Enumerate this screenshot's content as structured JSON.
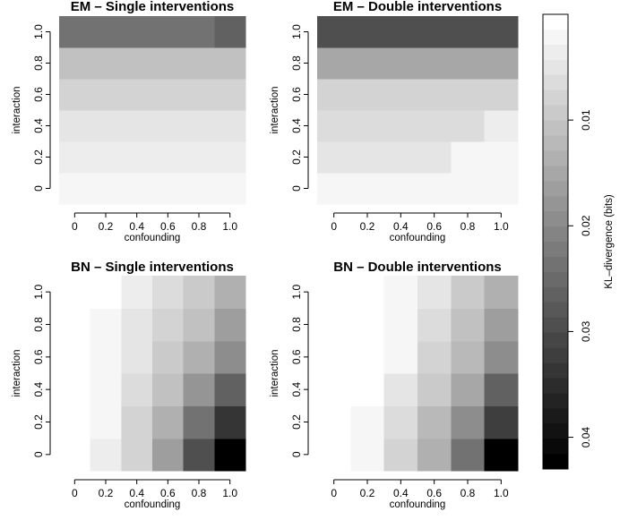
{
  "chart_data": [
    {
      "type": "heatmap",
      "title": "EM – Single interventions",
      "xlabel": "confounding",
      "ylabel": "interaction",
      "x": [
        0,
        0.2,
        0.4,
        0.6,
        0.8,
        1.0
      ],
      "y": [
        0,
        0.2,
        0.4,
        0.6,
        0.8,
        1.0
      ],
      "x_tick_labels": [
        "0",
        "0.2",
        "0.4",
        "0.6",
        "0.8",
        "1.0"
      ],
      "y_tick_labels": [
        "0",
        "0.2",
        "0.4",
        "0.6",
        "0.8",
        "1.0"
      ],
      "values": [
        [
          0.002,
          0.002,
          0.002,
          0.002,
          0.002,
          0.002
        ],
        [
          0.003,
          0.003,
          0.003,
          0.003,
          0.003,
          0.003
        ],
        [
          0.005,
          0.005,
          0.005,
          0.005,
          0.005,
          0.005
        ],
        [
          0.007,
          0.007,
          0.007,
          0.007,
          0.007,
          0.007
        ],
        [
          0.01,
          0.01,
          0.011,
          0.011,
          0.011,
          0.011
        ],
        [
          0.023,
          0.023,
          0.023,
          0.023,
          0.023,
          0.026
        ]
      ]
    },
    {
      "type": "heatmap",
      "title": "EM – Double interventions",
      "xlabel": "confounding",
      "ylabel": "interaction",
      "x": [
        0,
        0.2,
        0.4,
        0.6,
        0.8,
        1.0
      ],
      "y": [
        0,
        0.2,
        0.4,
        0.6,
        0.8,
        1.0
      ],
      "x_tick_labels": [
        "0",
        "0.2",
        "0.4",
        "0.6",
        "0.8",
        "1.0"
      ],
      "y_tick_labels": [
        "0",
        "0.2",
        "0.4",
        "0.6",
        "0.8",
        "1.0"
      ],
      "values": [
        [
          0.002,
          0.002,
          0.002,
          0.002,
          0.002,
          0.002
        ],
        [
          0.004,
          0.004,
          0.004,
          0.004,
          0.002,
          0.002
        ],
        [
          0.006,
          0.006,
          0.006,
          0.006,
          0.006,
          0.003
        ],
        [
          0.007,
          0.007,
          0.008,
          0.007,
          0.007,
          0.008
        ],
        [
          0.015,
          0.015,
          0.015,
          0.015,
          0.015,
          0.015
        ],
        [
          0.03,
          0.03,
          0.03,
          0.03,
          0.03,
          0.03
        ]
      ]
    },
    {
      "type": "heatmap",
      "title": "BN – Single interventions",
      "xlabel": "confounding",
      "ylabel": "interaction",
      "x": [
        0,
        0.2,
        0.4,
        0.6,
        0.8,
        1.0
      ],
      "y": [
        0,
        0.2,
        0.4,
        0.6,
        0.8,
        1.0
      ],
      "x_tick_labels": [
        "0",
        "0.2",
        "0.4",
        "0.6",
        "0.8",
        "1.0"
      ],
      "y_tick_labels": [
        "0",
        "0.2",
        "0.4",
        "0.6",
        "0.8",
        "1.0"
      ],
      "values": [
        [
          0.0,
          0.003,
          0.008,
          0.017,
          0.03,
          0.043
        ],
        [
          0.0,
          0.002,
          0.007,
          0.014,
          0.024,
          0.034
        ],
        [
          0.0,
          0.002,
          0.006,
          0.011,
          0.018,
          0.027
        ],
        [
          0.0,
          0.002,
          0.005,
          0.009,
          0.014,
          0.02
        ],
        [
          0.0,
          0.001,
          0.004,
          0.007,
          0.011,
          0.016
        ],
        [
          0.0,
          0.0,
          0.003,
          0.006,
          0.009,
          0.014
        ]
      ]
    },
    {
      "type": "heatmap",
      "title": "BN – Double interventions",
      "xlabel": "confounding",
      "ylabel": "interaction",
      "x": [
        0,
        0.2,
        0.4,
        0.6,
        0.8,
        1.0
      ],
      "y": [
        0,
        0.2,
        0.4,
        0.6,
        0.8,
        1.0
      ],
      "x_tick_labels": [
        "0",
        "0.2",
        "0.4",
        "0.6",
        "0.8",
        "1.0"
      ],
      "y_tick_labels": [
        "0",
        "0.2",
        "0.4",
        "0.6",
        "0.8",
        "1.0"
      ],
      "values": [
        [
          0.0,
          0.002,
          0.007,
          0.014,
          0.024,
          0.043
        ],
        [
          0.0,
          0.002,
          0.006,
          0.012,
          0.02,
          0.032
        ],
        [
          0.0,
          0.0,
          0.004,
          0.009,
          0.015,
          0.026
        ],
        [
          0.0,
          0.0,
          0.002,
          0.007,
          0.012,
          0.02
        ],
        [
          0.0,
          0.0,
          0.002,
          0.006,
          0.01,
          0.017
        ],
        [
          0.0,
          0.0,
          0.002,
          0.005,
          0.009,
          0.014
        ]
      ]
    },
    {
      "type": "colorbar",
      "label": "KL–divergence (bits)",
      "range": [
        0,
        0.043
      ],
      "ticks": [
        0.01,
        0.02,
        0.03,
        0.04
      ],
      "tick_labels": [
        "0.01",
        "0.02",
        "0.03",
        "0.04"
      ],
      "color_scale": [
        "#ffffff",
        "#000000"
      ],
      "levels": 30
    }
  ]
}
